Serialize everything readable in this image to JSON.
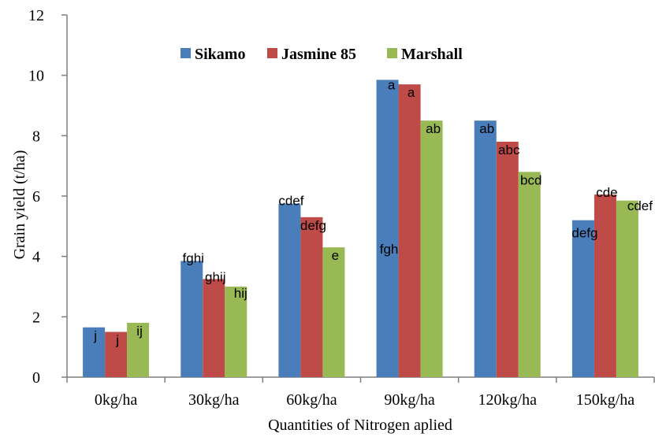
{
  "chart_data": {
    "type": "bar",
    "title": "",
    "xlabel": "Quantities of Nitrogen aplied",
    "ylabel": "Grain yield (t/ha)",
    "ylim": [
      0,
      12
    ],
    "yticks": [
      "0",
      "2",
      "4",
      "6",
      "8",
      "10",
      "12"
    ],
    "categories": [
      "0kg/ha",
      "30kg/ha",
      "60kg/ha",
      "90kg/ha",
      "120kg/ha",
      "150kg/ha"
    ],
    "legend_position": "top-right",
    "grid": false,
    "series": [
      {
        "name": "Sikamo",
        "color": "#4a7ebb",
        "values": [
          1.65,
          3.85,
          5.75,
          9.85,
          8.5,
          5.2
        ],
        "labels": [
          "j",
          "fghi",
          "cdef",
          "fgh",
          "ab",
          "defg"
        ]
      },
      {
        "name": "Jasmine 85",
        "color": "#be4b48",
        "values": [
          1.5,
          3.25,
          5.3,
          9.7,
          7.8,
          6.05
        ],
        "labels": [
          "j",
          "ghij",
          "defg",
          "a",
          "abc",
          "cde"
        ]
      },
      {
        "name": "Marshall",
        "color": "#98b954",
        "values": [
          1.8,
          3.0,
          4.3,
          8.5,
          6.8,
          5.85
        ],
        "labels": [
          "ij",
          "hij",
          "e",
          "ab",
          "bcd",
          "cdef"
        ]
      }
    ],
    "extra_annotations": [
      "a"
    ]
  }
}
